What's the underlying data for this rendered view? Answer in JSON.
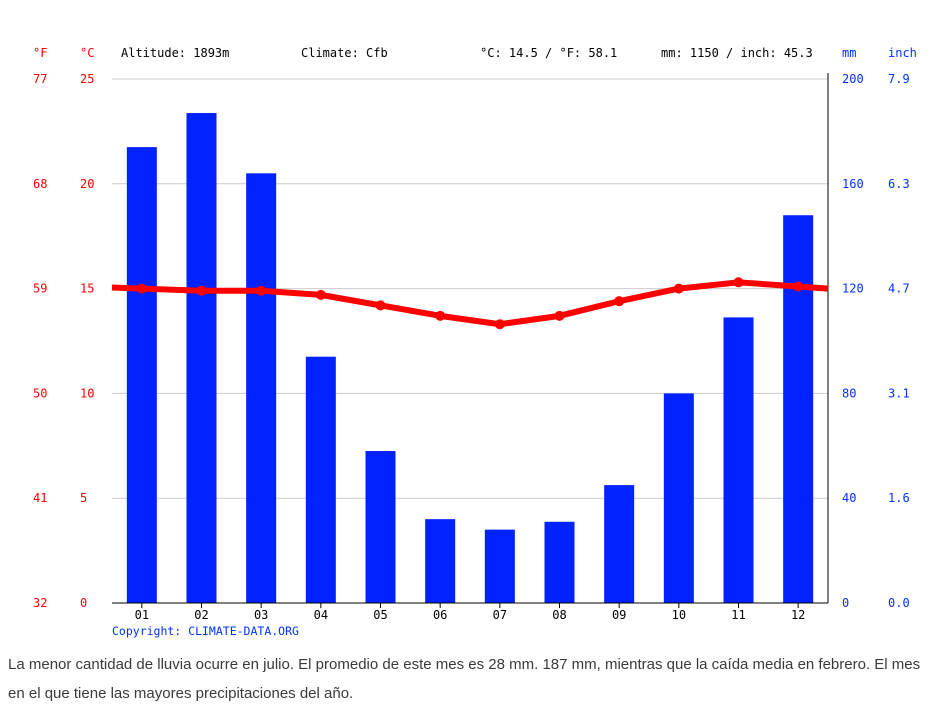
{
  "header": {
    "unit_f": "°F",
    "unit_c": "°C",
    "altitude": "Altitude: 1893m",
    "climate": "Climate: Cfb",
    "temp_avg": "°C: 14.5 / °F: 58.1",
    "precip_total": "mm: 1150 / inch: 45.3",
    "unit_mm": "mm",
    "unit_inch": "inch"
  },
  "copyright": "Copyright: CLIMATE-DATA.ORG",
  "caption": "La menor cantidad de lluvia ocurre en julio. El promedio de este mes es 28 mm. 187 mm, mientras que la caída media en febrero. El mes en el que tiene las mayores precipitaciones del año.",
  "colors": {
    "bar": "#0022ff",
    "line": "#ff0000",
    "grid": "#cccccc",
    "temp_text": "#ff0000",
    "precip_text": "#0033ff"
  },
  "chart_data": {
    "type": "bar",
    "categories": [
      "01",
      "02",
      "03",
      "04",
      "05",
      "06",
      "07",
      "08",
      "09",
      "10",
      "11",
      "12"
    ],
    "series": [
      {
        "kind": "bar",
        "axis": "precip",
        "values": [
          174,
          187,
          164,
          94,
          58,
          32,
          28,
          31,
          45,
          80,
          109,
          148
        ]
      },
      {
        "kind": "line",
        "axis": "temp",
        "values": [
          15.0,
          14.9,
          14.9,
          14.7,
          14.2,
          13.7,
          13.3,
          13.7,
          14.4,
          15.0,
          15.3,
          15.1
        ]
      }
    ],
    "temp_axis": {
      "celsius_ticks": [
        "25",
        "20",
        "15",
        "10",
        "5",
        "0"
      ],
      "fahrenheit_ticks": [
        "77",
        "68",
        "59",
        "50",
        "41",
        "32"
      ],
      "range": [
        0,
        25
      ]
    },
    "precip_axis": {
      "mm_ticks": [
        "200",
        "160",
        "120",
        "80",
        "40",
        "0"
      ],
      "inch_ticks": [
        "7.9",
        "6.3",
        "4.7",
        "3.1",
        "1.6",
        "0.0"
      ],
      "range": [
        0,
        200
      ]
    },
    "grid": true
  }
}
